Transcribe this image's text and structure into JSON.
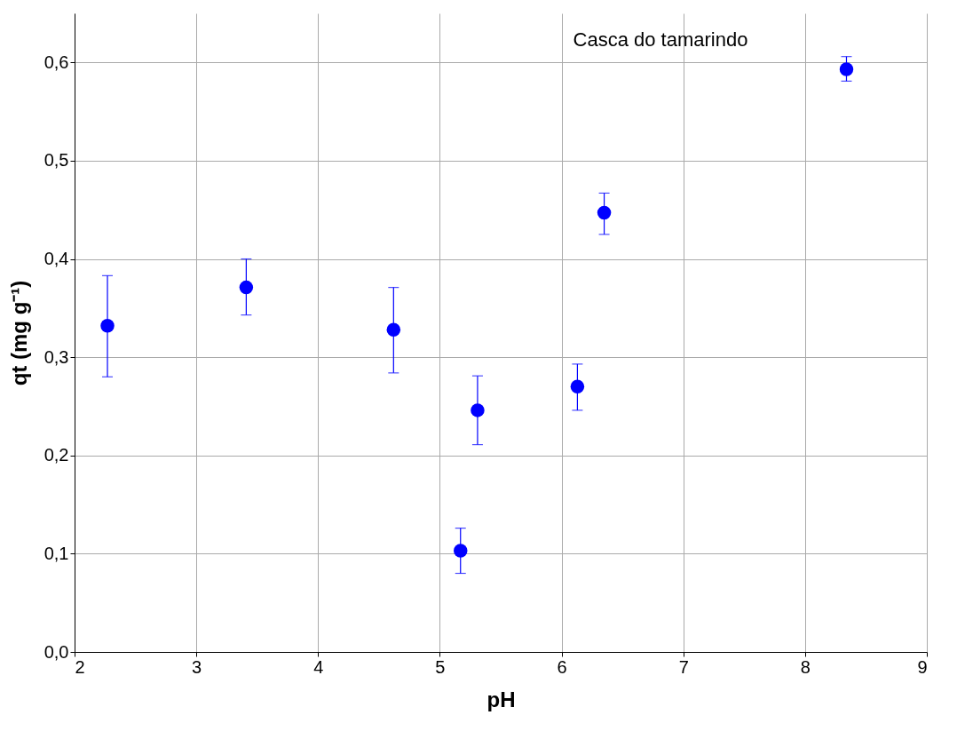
{
  "chart_data": {
    "type": "scatter",
    "xlabel": "pH",
    "ylabel": "qt (mg g⁻¹)",
    "x": [
      2.27,
      3.41,
      4.62,
      5.17,
      5.31,
      6.13,
      6.35,
      8.34
    ],
    "series": [
      {
        "color": "#0000ff",
        "values": [
          0.332,
          0.371,
          0.328,
          0.103,
          0.246,
          0.27,
          0.447,
          0.593
        ],
        "errors": [
          [
            0.28,
            0.383
          ],
          [
            0.343,
            0.4
          ],
          [
            0.284,
            0.371
          ],
          [
            0.08,
            0.126
          ],
          [
            0.211,
            0.281
          ],
          [
            0.246,
            0.293
          ],
          [
            0.425,
            0.467
          ],
          [
            0.581,
            0.606
          ]
        ]
      }
    ],
    "marker": "circle",
    "grid": true,
    "xlim": [
      2,
      9
    ],
    "xticks": [
      2,
      3,
      4,
      5,
      6,
      7,
      8,
      9
    ],
    "ylim": [
      0,
      0.65
    ],
    "yticks": [
      {
        "value": 0,
        "label": "0,0"
      },
      {
        "value": 0.1,
        "label": "0,1"
      },
      {
        "value": 0.2,
        "label": "0,2"
      },
      {
        "value": 0.3,
        "label": "0,3"
      },
      {
        "value": 0.4,
        "label": "0,4"
      },
      {
        "value": 0.5,
        "label": "0,5"
      },
      {
        "value": 0.6,
        "label": "0,6"
      }
    ],
    "annotations": [
      "Casca do tamarindo"
    ]
  }
}
